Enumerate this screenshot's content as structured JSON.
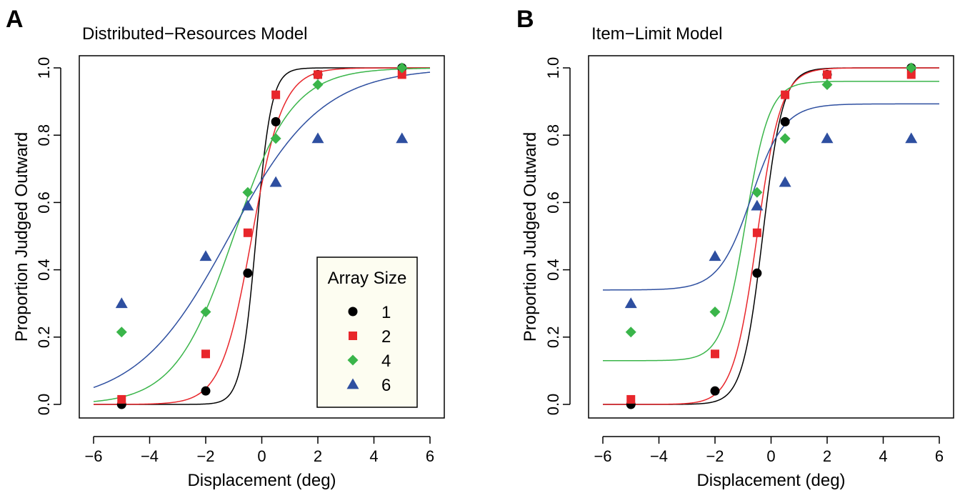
{
  "chart_data": [
    {
      "type": "scatter",
      "panel_letter": "A",
      "title": "Distributed−Resources Model",
      "xlabel": "Displacement (deg)",
      "ylabel": "Proportion Judged Outward",
      "xlim": [
        -6,
        6
      ],
      "ylim": [
        0,
        1
      ],
      "xticks": [
        "−6",
        "−4",
        "−2",
        "0",
        "2",
        "4",
        "6"
      ],
      "yticks": [
        "0.0",
        "0.2",
        "0.4",
        "0.6",
        "0.8",
        "1.0"
      ],
      "grid": false,
      "legend": {
        "title": "Array Size",
        "placement": "bottom-right"
      },
      "series": [
        {
          "name": "1",
          "color": "#000000",
          "marker": "circle",
          "x": [
            -5,
            -2,
            -0.5,
            0.5,
            2,
            5
          ],
          "y": [
            0.0,
            0.04,
            0.39,
            0.84,
            0.98,
            1.0
          ],
          "fit": {
            "model": "logistic",
            "mu": -0.2,
            "s": 0.27,
            "gamma": 0.0,
            "lambda": 0.0
          }
        },
        {
          "name": "2",
          "color": "#e8262b",
          "marker": "square",
          "x": [
            -5,
            -2,
            -0.5,
            0.5,
            2,
            5
          ],
          "y": [
            0.015,
            0.15,
            0.51,
            0.92,
            0.98,
            0.98
          ],
          "fit": {
            "model": "logistic",
            "mu": -0.35,
            "s": 0.55,
            "gamma": 0.0,
            "lambda": 0.0
          }
        },
        {
          "name": "4",
          "color": "#3ab54a",
          "marker": "diamond",
          "x": [
            -5,
            -2,
            -0.5,
            0.5,
            2,
            5
          ],
          "y": [
            0.215,
            0.275,
            0.63,
            0.79,
            0.95,
            1.0
          ],
          "fit": {
            "model": "logistic",
            "mu": -1.0,
            "s": 1.05,
            "gamma": 0.0,
            "lambda": 0.0
          }
        },
        {
          "name": "6",
          "color": "#2e4fa0",
          "marker": "triangle",
          "x": [
            -5,
            -2,
            -0.5,
            0.5,
            2,
            5
          ],
          "y": [
            0.3,
            0.44,
            0.59,
            0.66,
            0.79,
            0.79
          ],
          "fit": {
            "model": "logistic",
            "mu": -1.15,
            "s": 1.65,
            "gamma": 0.0,
            "lambda": 0.0
          }
        }
      ]
    },
    {
      "type": "scatter",
      "panel_letter": "B",
      "title": "Item−Limit Model",
      "xlabel": "Displacement (deg)",
      "ylabel": "Proportion Judged Outward",
      "xlim": [
        -6,
        6
      ],
      "ylim": [
        0,
        1
      ],
      "xticks": [
        "−6",
        "−4",
        "−2",
        "0",
        "2",
        "4",
        "6"
      ],
      "yticks": [
        "0.0",
        "0.2",
        "0.4",
        "0.6",
        "0.8",
        "1.0"
      ],
      "grid": false,
      "series": [
        {
          "name": "1",
          "color": "#000000",
          "marker": "circle",
          "x": [
            -5,
            -2,
            -0.5,
            0.5,
            2,
            5
          ],
          "y": [
            0.0,
            0.04,
            0.39,
            0.84,
            0.98,
            1.0
          ],
          "fit": {
            "model": "logistic",
            "mu": -0.3,
            "s": 0.36,
            "gamma": 0.0,
            "lambda": 0.0
          }
        },
        {
          "name": "2",
          "color": "#e8262b",
          "marker": "square",
          "x": [
            -5,
            -2,
            -0.5,
            0.5,
            2,
            5
          ],
          "y": [
            0.015,
            0.15,
            0.51,
            0.92,
            0.98,
            0.98
          ],
          "fit": {
            "model": "logistic",
            "mu": -0.5,
            "s": 0.43,
            "gamma": 0.0,
            "lambda": 0.0
          }
        },
        {
          "name": "4",
          "color": "#3ab54a",
          "marker": "diamond",
          "x": [
            -5,
            -2,
            -0.5,
            0.5,
            2,
            5
          ],
          "y": [
            0.215,
            0.275,
            0.63,
            0.79,
            0.95,
            1.0
          ],
          "fit": {
            "model": "logistic",
            "mu": -0.9,
            "s": 0.42,
            "gamma": 0.13,
            "lambda": 0.04
          }
        },
        {
          "name": "6",
          "color": "#2e4fa0",
          "marker": "triangle",
          "x": [
            -5,
            -2,
            -0.5,
            0.5,
            2,
            5
          ],
          "y": [
            0.3,
            0.44,
            0.59,
            0.66,
            0.79,
            0.79
          ],
          "fit": {
            "model": "logistic",
            "mu": -0.7,
            "s": 0.58,
            "gamma": 0.34,
            "lambda": 0.107
          }
        }
      ]
    }
  ]
}
